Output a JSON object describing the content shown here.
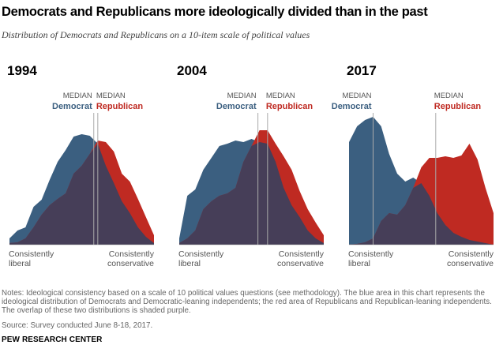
{
  "title": "Democrats and Republicans more ideologically divided than in the past",
  "subtitle": "Distribution of Democrats and Republicans on a 10-item scale of political values",
  "notes": "Notes: Ideological consistency based on a scale of 10 political values questions (see methodology). The blue area in this chart represents the ideological distribution of Democrats and Democratic-leaning independents; the red area of Republicans and Republican-leaning independents. The overlap of these two distributions is shaded purple.",
  "source": "Source: Survey conducted June 8-18, 2017.",
  "org": "PEW RESEARCH CENTER",
  "colors": {
    "democrat": "#3b5f80",
    "republican": "#bf2a22",
    "overlap": "#463e58",
    "median_line": "#aaaaaa",
    "axis_text": "#555555"
  },
  "chart_data": [
    {
      "type": "area",
      "panel_title": "1994",
      "x_label_left": "Consistently liberal",
      "x_label_right": "Consistently conservative",
      "median_word": "MEDIAN",
      "median_dem_label": "Democrat",
      "median_rep_label": "Republican",
      "median_dem": 10.5,
      "median_rep": 11.0,
      "x": [
        0,
        1,
        2,
        3,
        4,
        5,
        6,
        7,
        8,
        9,
        10,
        11,
        12,
        13,
        14,
        15,
        16,
        17,
        18
      ],
      "series": [
        {
          "name": "Democrat",
          "values": [
            8,
            18,
            22,
            48,
            57,
            82,
            105,
            120,
            137,
            140,
            138,
            128,
            100,
            78,
            55,
            40,
            22,
            10,
            2
          ]
        },
        {
          "name": "Republican",
          "values": [
            2,
            3,
            8,
            22,
            38,
            50,
            58,
            65,
            90,
            100,
            115,
            132,
            130,
            118,
            90,
            80,
            58,
            35,
            12
          ]
        }
      ]
    },
    {
      "type": "area",
      "panel_title": "2004",
      "x_label_left": "Consistently liberal",
      "x_label_right": "Consistently conservative",
      "median_word": "MEDIAN",
      "median_dem_label": "Democrat",
      "median_rep_label": "Republican",
      "median_dem": 9.8,
      "median_rep": 11.0,
      "x": [
        0,
        1,
        2,
        3,
        4,
        5,
        6,
        7,
        8,
        9,
        10,
        11,
        12,
        13,
        14,
        15,
        16,
        17,
        18
      ],
      "series": [
        {
          "name": "Democrat",
          "values": [
            8,
            62,
            70,
            95,
            110,
            125,
            128,
            132,
            130,
            134,
            130,
            128,
            105,
            72,
            50,
            35,
            18,
            8,
            2
          ]
        },
        {
          "name": "Republican",
          "values": [
            2,
            8,
            18,
            45,
            55,
            62,
            65,
            72,
            105,
            125,
            145,
            145,
            128,
            112,
            95,
            68,
            45,
            28,
            12
          ]
        }
      ]
    },
    {
      "type": "area",
      "panel_title": "2017",
      "x_label_left": "Consistently liberal",
      "x_label_right": "Consistently conservative",
      "median_word": "MEDIAN",
      "median_dem_label": "Democrat",
      "median_rep_label": "Republican",
      "median_dem": 3.0,
      "median_rep": 10.8,
      "x": [
        0,
        1,
        2,
        3,
        4,
        5,
        6,
        7,
        8,
        9,
        10,
        11,
        12,
        13,
        14,
        15,
        16,
        17,
        18
      ],
      "series": [
        {
          "name": "Democrat",
          "values": [
            130,
            150,
            158,
            162,
            150,
            115,
            90,
            80,
            85,
            78,
            62,
            40,
            25,
            15,
            10,
            6,
            4,
            2,
            0
          ]
        },
        {
          "name": "Republican",
          "values": [
            0,
            1,
            3,
            8,
            30,
            40,
            38,
            50,
            72,
            98,
            110,
            110,
            112,
            110,
            113,
            128,
            108,
            72,
            40
          ]
        }
      ]
    }
  ]
}
